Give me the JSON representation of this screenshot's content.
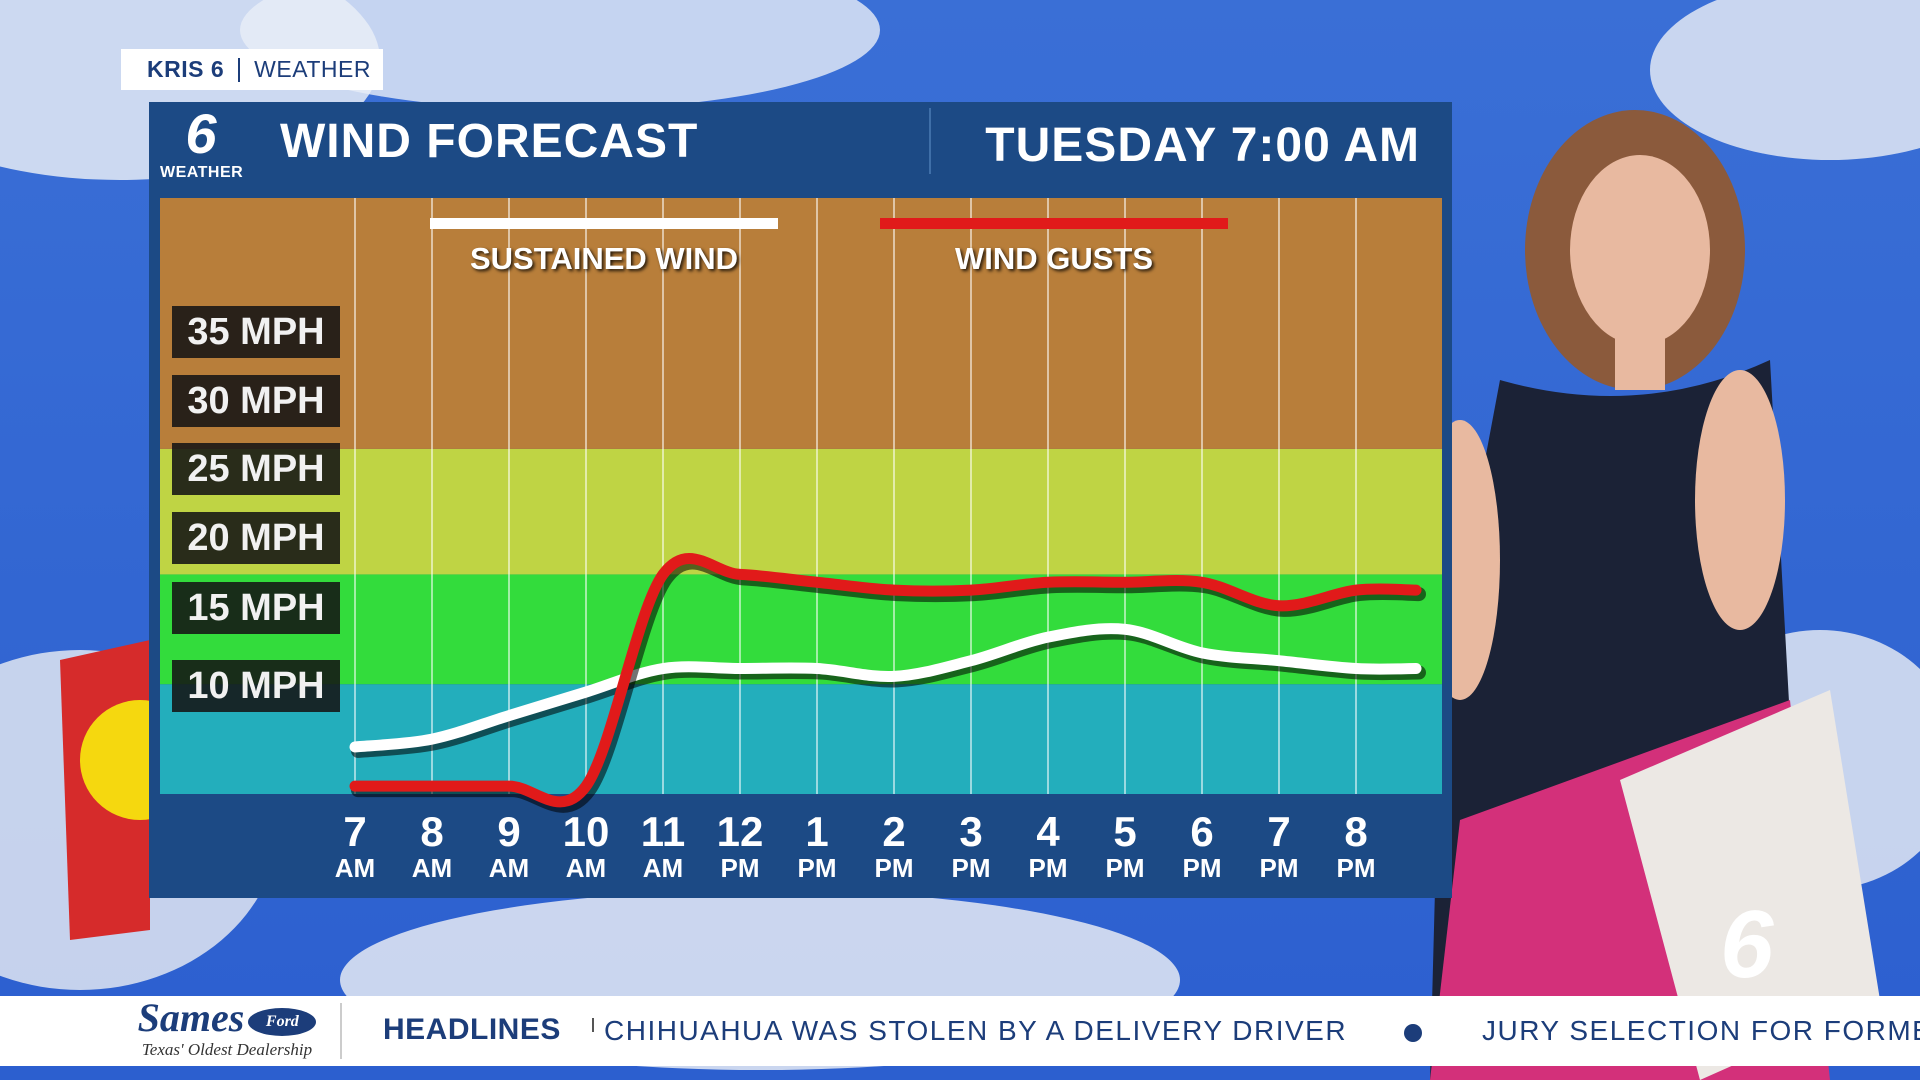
{
  "header": {
    "station": "KRIS 6",
    "section": "WEATHER",
    "logo_number": "6",
    "logo_label": "WEATHER",
    "title": "WIND FORECAST",
    "timestamp": "TUESDAY 7:00 AM"
  },
  "colors": {
    "panel": "#1c4a85",
    "band_35plus": "#b87e3a",
    "band_20_25": "#bfd444",
    "band_15_20": "#33dc3c",
    "band_below_15": "#23aebc",
    "sustained": "#ffffff",
    "gusts": "#e11a1a",
    "ticker_text": "#1c3d7a"
  },
  "chart_data": {
    "type": "line",
    "title": "WIND FORECAST",
    "x": [
      "7 AM",
      "8 AM",
      "9 AM",
      "10 AM",
      "11 AM",
      "12 PM",
      "1 PM",
      "2 PM",
      "3 PM",
      "4 PM",
      "5 PM",
      "6 PM",
      "7 PM",
      "8 PM"
    ],
    "x_ticks": [
      {
        "n": "7",
        "m": "AM"
      },
      {
        "n": "8",
        "m": "AM"
      },
      {
        "n": "9",
        "m": "AM"
      },
      {
        "n": "10",
        "m": "AM"
      },
      {
        "n": "11",
        "m": "AM"
      },
      {
        "n": "12",
        "m": "PM"
      },
      {
        "n": "1",
        "m": "PM"
      },
      {
        "n": "2",
        "m": "PM"
      },
      {
        "n": "3",
        "m": "PM"
      },
      {
        "n": "4",
        "m": "PM"
      },
      {
        "n": "5",
        "m": "PM"
      },
      {
        "n": "6",
        "m": "PM"
      },
      {
        "n": "7",
        "m": "PM"
      },
      {
        "n": "8",
        "m": "PM"
      }
    ],
    "y_labels": [
      "35 MPH",
      "30 MPH",
      "25 MPH",
      "20 MPH",
      "15 MPH",
      "10 MPH"
    ],
    "y_label_values": [
      35,
      30,
      25,
      20,
      15,
      10
    ],
    "ylim": [
      3,
      41
    ],
    "bands": [
      {
        "from": 3,
        "to": 10,
        "color": "#23aebc"
      },
      {
        "from": 10,
        "to": 17,
        "color": "#33dc3c"
      },
      {
        "from": 17,
        "to": 25,
        "color": "#bfd444"
      },
      {
        "from": 25,
        "to": 41,
        "color": "#b87e3a"
      }
    ],
    "series": [
      {
        "name": "SUSTAINED WIND",
        "color": "#ffffff",
        "values": [
          6,
          6.5,
          8,
          9.5,
          11,
          11,
          11,
          10.5,
          11.5,
          13,
          13.5,
          12,
          11.5,
          11
        ]
      },
      {
        "name": "WIND GUSTS",
        "color": "#e11a1a",
        "values": [
          3.5,
          3.5,
          3.5,
          3.5,
          17,
          17,
          16.5,
          16,
          16,
          16.5,
          16.5,
          16.5,
          15,
          16
        ]
      }
    ],
    "grid": true,
    "legend": "top"
  },
  "ticker": {
    "sponsor_name": "Sames",
    "sponsor_brand": "Ford",
    "sponsor_tagline": "Texas' Oldest Dealership",
    "label": "HEADLINES",
    "story1": "CHIHUAHUA WAS STOLEN BY A DELIVERY DRIVER",
    "story2": "JURY SELECTION FOR FORME"
  },
  "network_logo": "6"
}
